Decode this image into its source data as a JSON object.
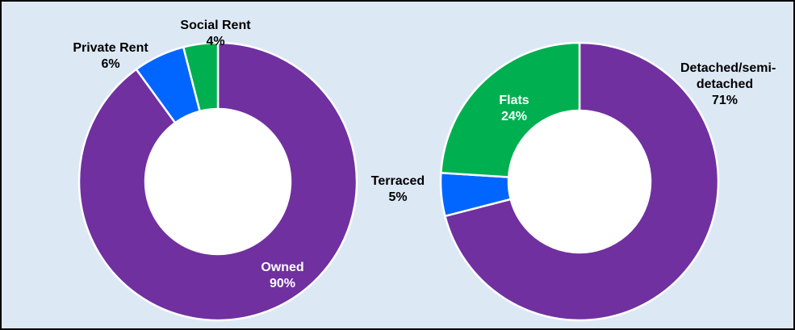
{
  "chart_data": [
    {
      "type": "donut",
      "categories": [
        "Owned",
        "Private Rent",
        "Social Rent"
      ],
      "values": [
        90,
        6,
        4
      ],
      "value_labels": [
        "90%",
        "6%",
        "4%"
      ],
      "colors": [
        "#7030a0",
        "#0066ff",
        "#00b050"
      ]
    },
    {
      "type": "donut",
      "categories": [
        "Detached/semi-detached",
        "Terraced",
        "Flats"
      ],
      "values": [
        71,
        5,
        24
      ],
      "value_labels": [
        "71%",
        "5%",
        "24%"
      ],
      "colors": [
        "#7030a0",
        "#0066ff",
        "#00b050"
      ]
    }
  ]
}
